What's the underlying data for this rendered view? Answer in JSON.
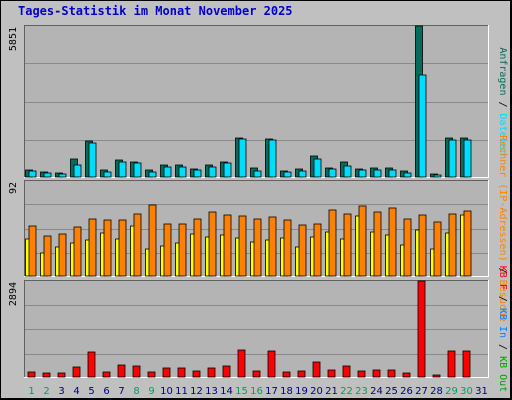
{
  "title": "Tages-Statistik im Monat November 2025",
  "colors": {
    "frame_bg": "#c0c0c0",
    "plot_bg": "#b4b4b4",
    "grid": "#8a8a8a",
    "anfragen": "#006e5a",
    "dateien": "#00dcff",
    "rechner": "#ffff00",
    "besuche": "#ff8000",
    "kb": "#ff0000",
    "weekday_label": "#000080",
    "weekend_label": "#00a060"
  },
  "chart_data": [
    {
      "type": "bar",
      "panel": "requests",
      "y_max_label": "5851",
      "ylim": [
        0,
        5851
      ],
      "grid": true,
      "legend": "right",
      "legend_entries": [
        {
          "text": "Anfragen",
          "color": "#006e5a"
        },
        {
          "text": " / ",
          "color": "#000000"
        },
        {
          "text": "Dateien",
          "color": "#00dcff"
        }
      ],
      "categories": [
        "1",
        "2",
        "3",
        "4",
        "5",
        "6",
        "7",
        "8",
        "9",
        "10",
        "11",
        "12",
        "13",
        "14",
        "15",
        "16",
        "17",
        "18",
        "19",
        "20",
        "21",
        "22",
        "23",
        "24",
        "25",
        "26",
        "27",
        "28",
        "29",
        "30",
        "31"
      ],
      "series": [
        {
          "name": "Anfragen",
          "color": "#006e5a",
          "values": [
            280,
            200,
            150,
            680,
            1400,
            280,
            640,
            600,
            260,
            450,
            450,
            320,
            450,
            600,
            1520,
            330,
            1460,
            240,
            300,
            800,
            360,
            600,
            320,
            350,
            330,
            230,
            5851,
            100,
            1520,
            1500,
            0
          ]
        },
        {
          "name": "Dateien",
          "color": "#00dcff",
          "values": [
            230,
            170,
            130,
            470,
            1320,
            210,
            600,
            560,
            210,
            390,
            390,
            270,
            400,
            560,
            1480,
            250,
            1420,
            180,
            230,
            700,
            320,
            430,
            260,
            290,
            290,
            160,
            3950,
            70,
            1420,
            1420,
            0
          ]
        }
      ]
    },
    {
      "type": "bar",
      "panel": "visits",
      "y_max_label": "92",
      "ylim": [
        0,
        92
      ],
      "grid": true,
      "legend": "right",
      "legend_entries": [
        {
          "text": "Rechner (IP-Adressen)",
          "color": "#ff8000"
        },
        {
          "text": " / ",
          "color": "#000000"
        },
        {
          "text": "Besuche",
          "color": "#ff8000"
        }
      ],
      "categories": [
        "1",
        "2",
        "3",
        "4",
        "5",
        "6",
        "7",
        "8",
        "9",
        "10",
        "11",
        "12",
        "13",
        "14",
        "15",
        "16",
        "17",
        "18",
        "19",
        "20",
        "21",
        "22",
        "23",
        "24",
        "25",
        "26",
        "27",
        "28",
        "29",
        "30",
        "31"
      ],
      "series": [
        {
          "name": "Rechner (IP-Adressen)",
          "color": "#ffff00",
          "values": [
            36,
            22,
            28,
            32,
            35,
            42,
            36,
            48,
            26,
            29,
            32,
            41,
            38,
            40,
            37,
            33,
            35,
            37,
            28,
            38,
            43,
            36,
            58,
            43,
            40,
            30,
            45,
            26,
            42,
            59,
            0
          ]
        },
        {
          "name": "Besuche",
          "color": "#ff8000",
          "values": [
            48,
            39,
            41,
            47,
            55,
            54,
            54,
            60,
            69,
            50,
            50,
            55,
            62,
            59,
            58,
            55,
            57,
            54,
            49,
            50,
            64,
            60,
            68,
            62,
            66,
            55,
            59,
            52,
            60,
            63,
            0
          ]
        }
      ]
    },
    {
      "type": "bar",
      "panel": "traffic",
      "y_max_label": "2894",
      "ylim": [
        0,
        2894
      ],
      "grid": true,
      "legend": "right",
      "legend_entries": [
        {
          "text": "KB F",
          "color": "#ff0000"
        },
        {
          "text": " / ",
          "color": "#000000"
        },
        {
          "text": "KB In",
          "color": "#0080ff"
        },
        {
          "text": " / ",
          "color": "#000000"
        },
        {
          "text": "KB Out",
          "color": "#00a000"
        }
      ],
      "categories": [
        "1",
        "2",
        "3",
        "4",
        "5",
        "6",
        "7",
        "8",
        "9",
        "10",
        "11",
        "12",
        "13",
        "14",
        "15",
        "16",
        "17",
        "18",
        "19",
        "20",
        "21",
        "22",
        "23",
        "24",
        "25",
        "26",
        "27",
        "28",
        "29",
        "30",
        "31"
      ],
      "series": [
        {
          "name": "KB F",
          "color": "#ff0000",
          "values": [
            160,
            130,
            120,
            300,
            760,
            150,
            370,
            340,
            150,
            260,
            260,
            190,
            260,
            330,
            820,
            180,
            790,
            150,
            180,
            440,
            200,
            330,
            190,
            210,
            200,
            130,
            2894,
            60,
            780,
            780,
            0
          ]
        }
      ]
    }
  ],
  "day_labels": [
    {
      "text": "1",
      "weekend": true
    },
    {
      "text": "2",
      "weekend": true
    },
    {
      "text": "3",
      "weekend": false
    },
    {
      "text": "4",
      "weekend": false
    },
    {
      "text": "5",
      "weekend": false
    },
    {
      "text": "6",
      "weekend": false
    },
    {
      "text": "7",
      "weekend": false
    },
    {
      "text": "8",
      "weekend": true
    },
    {
      "text": "9",
      "weekend": true
    },
    {
      "text": "10",
      "weekend": false
    },
    {
      "text": "11",
      "weekend": false
    },
    {
      "text": "12",
      "weekend": false
    },
    {
      "text": "13",
      "weekend": false
    },
    {
      "text": "14",
      "weekend": false
    },
    {
      "text": "15",
      "weekend": true
    },
    {
      "text": "16",
      "weekend": true
    },
    {
      "text": "17",
      "weekend": false
    },
    {
      "text": "18",
      "weekend": false
    },
    {
      "text": "19",
      "weekend": false
    },
    {
      "text": "20",
      "weekend": false
    },
    {
      "text": "21",
      "weekend": false
    },
    {
      "text": "22",
      "weekend": true
    },
    {
      "text": "23",
      "weekend": true
    },
    {
      "text": "24",
      "weekend": false
    },
    {
      "text": "25",
      "weekend": false
    },
    {
      "text": "26",
      "weekend": false
    },
    {
      "text": "27",
      "weekend": false
    },
    {
      "text": "28",
      "weekend": false
    },
    {
      "text": "29",
      "weekend": true
    },
    {
      "text": "30",
      "weekend": true
    },
    {
      "text": "31",
      "weekend": false
    }
  ]
}
